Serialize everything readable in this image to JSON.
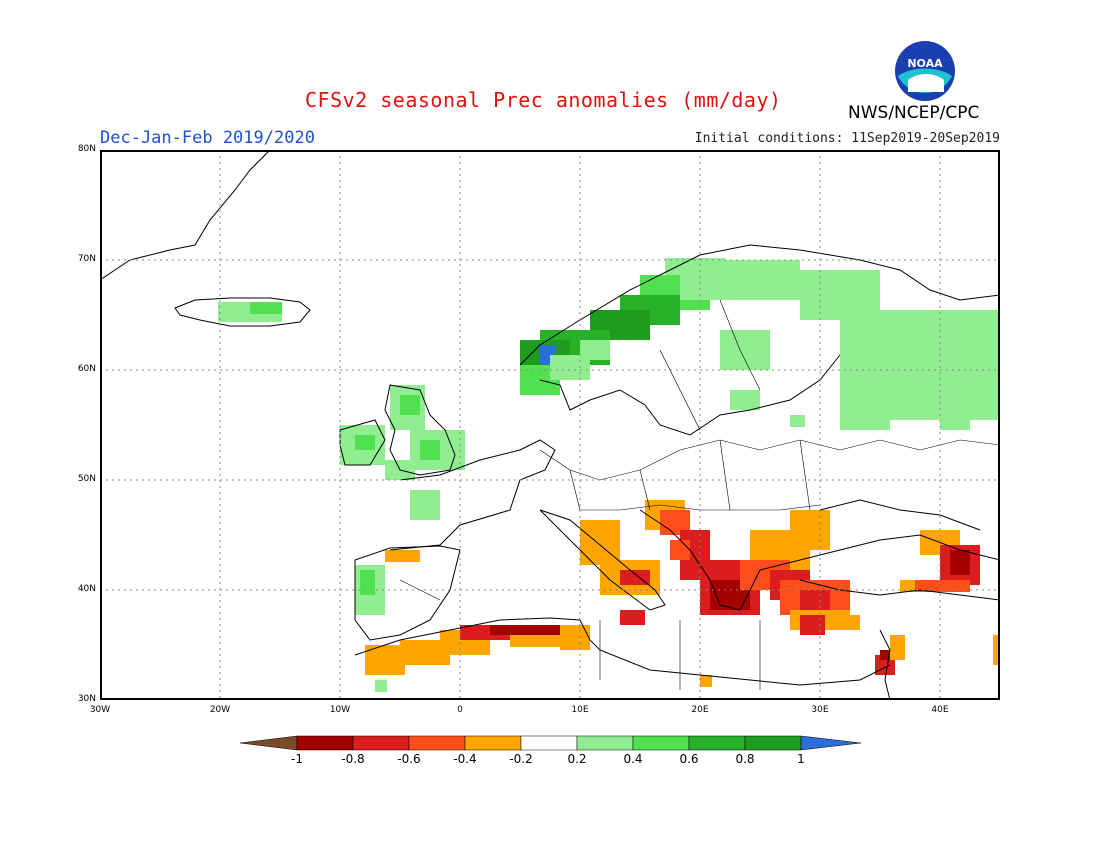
{
  "title": "CFSv2 seasonal Prec anomalies (mm/day)",
  "season": "Dec-Jan-Feb 2019/2020",
  "initial_conditions": "Initial conditions: 11Sep2019-20Sep2019",
  "agency": "NWS/NCEP/CPC",
  "logo_icon": "noaa-logo-icon",
  "lat_labels": [
    "80N",
    "70N",
    "60N",
    "50N",
    "40N",
    "30N"
  ],
  "lon_labels": [
    "30W",
    "20W",
    "10W",
    "0",
    "10E",
    "20E",
    "30E",
    "40E"
  ],
  "colorbar_labels": [
    "-1",
    "-0.8",
    "-0.6",
    "-0.4",
    "-0.2",
    "0.2",
    "0.4",
    "0.6",
    "0.8",
    "1"
  ],
  "colors": {
    "title": "#e01010",
    "season": "#2050d0",
    "below_minus1": "#7b4a2a",
    "minus1_to_minus08": "#a50000",
    "minus08_to_minus06": "#dc1d1d",
    "minus06_to_minus04": "#ff4e1a",
    "minus04_to_minus02": "#ffa500",
    "neutral": "#ffffff",
    "plus02_to_plus04": "#90ee90",
    "plus04_to_plus06": "#50e050",
    "plus06_to_plus08": "#28b028",
    "plus08_to_plus1": "#1e9c1e",
    "above_plus1": "#2a6ed8"
  }
}
